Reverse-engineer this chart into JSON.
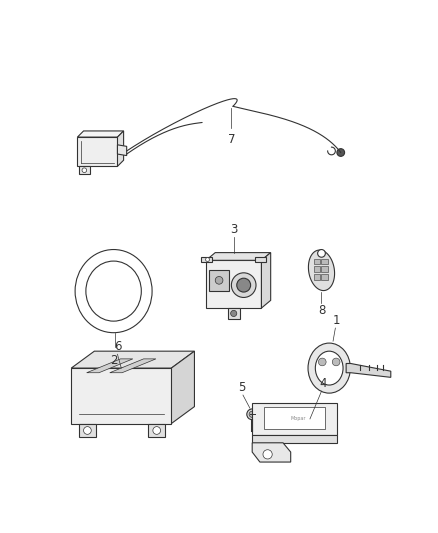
{
  "background_color": "#ffffff",
  "fig_width": 4.38,
  "fig_height": 5.33,
  "dpi": 100,
  "line_color": "#333333",
  "label_fontsize": 8.5,
  "label_color": "#222222"
}
